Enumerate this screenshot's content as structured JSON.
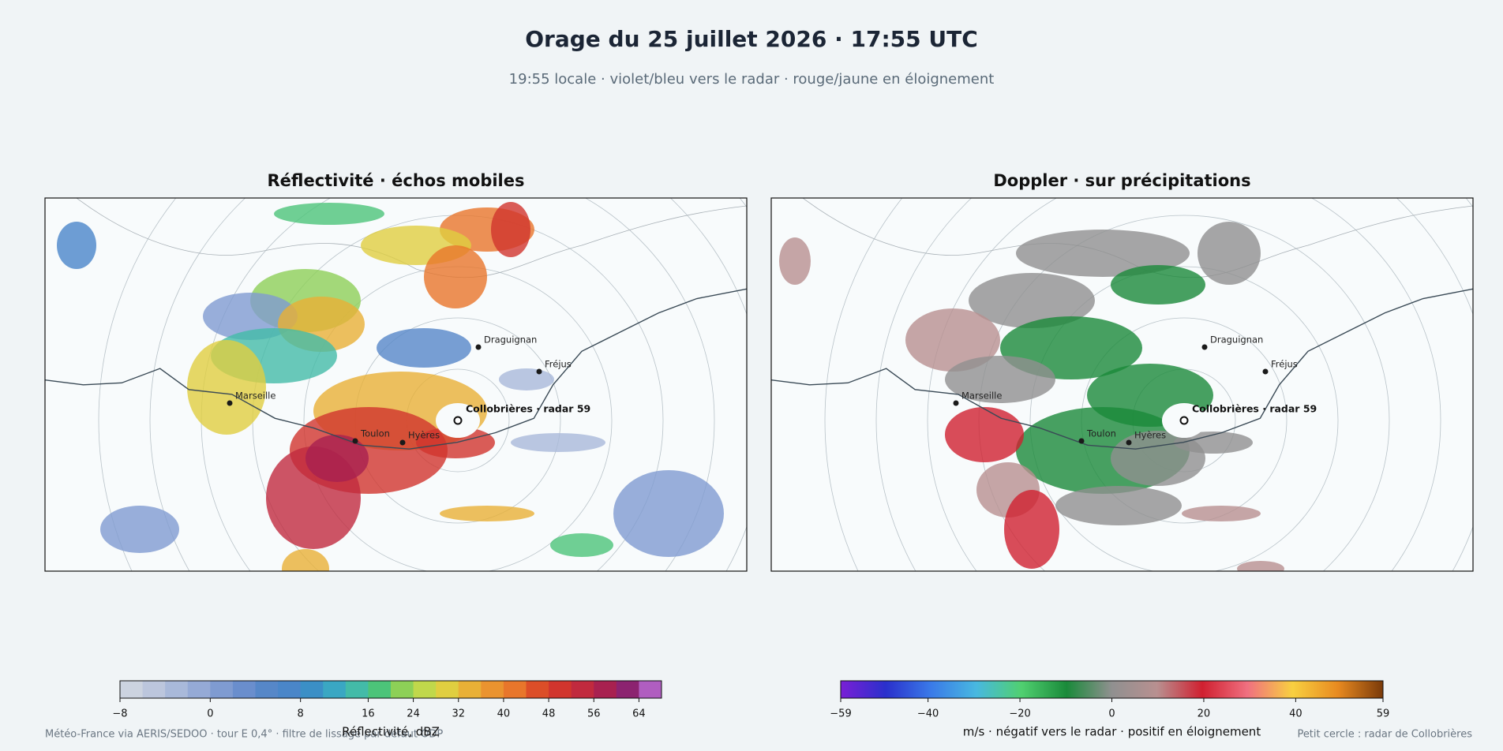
{
  "title": "Orage du 25 juillet 2026 · 17:55 UTC",
  "subtitle": "19:55 locale · violet/bleu vers le radar · rouge/jaune en éloignement",
  "panels": [
    {
      "title": "Réflectivité · échos mobiles",
      "radar_label": "Collobrières · radar 59",
      "cities": [
        "Draguignan",
        "Fréjus",
        "Marseille",
        "Toulon",
        "Hyères"
      ]
    },
    {
      "title": "Doppler · sur précipitations",
      "radar_label": "Collobrières · radar 59",
      "cities": [
        "Draguignan",
        "Fréjus",
        "Marseille",
        "Toulon",
        "Hyères"
      ]
    }
  ],
  "colorbars": [
    {
      "label": "Réflectivité, dBZ",
      "bounds": [
        -8,
        -6,
        -4,
        -2,
        0,
        2,
        4,
        6,
        8,
        10,
        13,
        16,
        20,
        24,
        28,
        32,
        36,
        40,
        44,
        48,
        52,
        56,
        60,
        64,
        68
      ],
      "colors": [
        "#ccd3e0",
        "#bcc6dd",
        "#a9b9da",
        "#95aad6",
        "#7f9bd1",
        "#6a8ecd",
        "#5687c8",
        "#4a86c9",
        "#3b8fc6",
        "#3aa7c3",
        "#43bba8",
        "#4cc479",
        "#8dd057",
        "#c0d84b",
        "#e0ce40",
        "#e9b036",
        "#ea932f",
        "#e8762b",
        "#dc4e28",
        "#d1352d",
        "#c12a3e",
        "#a82150",
        "#8c2370",
        "#b05ec0"
      ],
      "ticks": [
        {
          "value": -8,
          "label": "−8"
        },
        0,
        8,
        16,
        24,
        32,
        40,
        48,
        56,
        64
      ]
    },
    {
      "label": "m/s · négatif vers le radar · positif en éloignement",
      "lim": [
        -59,
        59
      ],
      "colors": [
        "#7a1fd6",
        "#2a30cc",
        "#3a7ae8",
        "#48b8e0",
        "#50d070",
        "#1a8a3a",
        "#909090",
        "#b89090",
        "#d02030",
        "#f07080",
        "#f8d040",
        "#e88a20",
        "#7a3a0a"
      ],
      "ticks": [
        {
          "value": -59,
          "label": "−59"
        },
        {
          "value": -40,
          "label": "−40"
        },
        {
          "value": -20,
          "label": "−20"
        },
        0,
        20,
        40,
        59
      ]
    }
  ],
  "footer": {
    "source": "Météo-France via AERIS/SEDOO · tour E 0,4° · filtre de lissage par défaut ODP",
    "note": "Petit cercle : radar de Collobrières"
  }
}
